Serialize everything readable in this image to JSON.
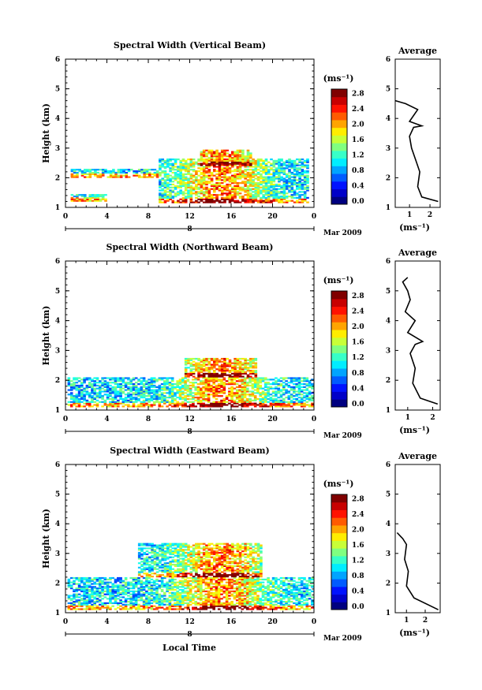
{
  "figure": {
    "xlabel": "Local Time",
    "date_label": "Mar 2009",
    "day_label": "8",
    "colorbar_unit": "(ms⁻¹)",
    "average_unit": "(ms⁻¹)",
    "ylabel": "Height (km)"
  },
  "chart_data": [
    {
      "type": "heatmap",
      "title": "Spectral Width (Vertical Beam)",
      "xlabel": "Local Time",
      "ylabel": "Height (km)",
      "x_ticks": [
        "0",
        "4",
        "8",
        "12",
        "16",
        "20",
        "0"
      ],
      "xlim": [
        0,
        24
      ],
      "y_ticks": [
        "1",
        "2",
        "3",
        "4",
        "5",
        "6"
      ],
      "ylim": [
        1,
        6
      ],
      "colorbar": {
        "label": "(ms⁻¹)",
        "ticks": [
          "0.0",
          "0.4",
          "0.8",
          "1.2",
          "1.6",
          "2.0",
          "2.4",
          "2.8"
        ],
        "range": [
          0,
          3.0
        ]
      },
      "echo_region": [
        {
          "x": [
            0.5,
            4.0
          ],
          "y": [
            1.2,
            1.45
          ]
        },
        {
          "x": [
            0.5,
            9.0
          ],
          "y": [
            2.0,
            2.25
          ]
        },
        {
          "x": [
            9.0,
            23.5
          ],
          "y": [
            1.15,
            2.6
          ]
        },
        {
          "x": [
            13.0,
            18.0
          ],
          "y": [
            2.4,
            2.9
          ]
        }
      ]
    },
    {
      "type": "line",
      "title": "Average",
      "xlabel": "(ms⁻¹)",
      "x_ticks": [
        "1",
        "2"
      ],
      "xlim": [
        0.3,
        2.5
      ],
      "y_ticks": [
        "1",
        "2",
        "3",
        "4",
        "5",
        "6"
      ],
      "ylim": [
        1,
        6
      ],
      "points": [
        [
          2.4,
          1.2
        ],
        [
          1.6,
          1.35
        ],
        [
          1.4,
          1.7
        ],
        [
          1.5,
          2.2
        ],
        [
          1.3,
          2.6
        ],
        [
          1.1,
          3.0
        ],
        [
          1.0,
          3.4
        ],
        [
          1.2,
          3.7
        ],
        [
          1.6,
          3.75
        ],
        [
          1.0,
          3.9
        ],
        [
          1.4,
          4.3
        ],
        [
          0.8,
          4.5
        ],
        [
          0.3,
          4.6
        ]
      ]
    },
    {
      "type": "heatmap",
      "title": "Spectral Width (Northward Beam)",
      "xlabel": "Local Time",
      "ylabel": "Height (km)",
      "x_ticks": [
        "0",
        "4",
        "8",
        "12",
        "16",
        "20",
        "0"
      ],
      "xlim": [
        0,
        24
      ],
      "y_ticks": [
        "1",
        "2",
        "3",
        "4",
        "5",
        "6"
      ],
      "ylim": [
        1,
        6
      ],
      "colorbar": {
        "label": "(ms⁻¹)",
        "ticks": [
          "0.0",
          "0.4",
          "0.8",
          "1.2",
          "1.6",
          "2.0",
          "2.4",
          "2.8"
        ],
        "range": [
          0,
          3.0
        ]
      },
      "echo_region": [
        {
          "x": [
            0.2,
            23.8
          ],
          "y": [
            1.1,
            2.1
          ]
        },
        {
          "x": [
            11.5,
            18.5
          ],
          "y": [
            2.1,
            2.7
          ]
        }
      ]
    },
    {
      "type": "line",
      "title": "Average",
      "xlabel": "(ms⁻¹)",
      "x_ticks": [
        "1",
        "2"
      ],
      "xlim": [
        0.5,
        2.3
      ],
      "y_ticks": [
        "1",
        "2",
        "3",
        "4",
        "5",
        "6"
      ],
      "ylim": [
        1,
        6
      ],
      "points": [
        [
          2.2,
          1.2
        ],
        [
          1.5,
          1.4
        ],
        [
          1.2,
          1.9
        ],
        [
          1.3,
          2.4
        ],
        [
          1.1,
          2.9
        ],
        [
          1.3,
          3.2
        ],
        [
          1.6,
          3.3
        ],
        [
          1.0,
          3.6
        ],
        [
          1.3,
          4.0
        ],
        [
          0.9,
          4.3
        ],
        [
          1.1,
          4.7
        ],
        [
          1.0,
          5.0
        ],
        [
          0.8,
          5.3
        ],
        [
          1.0,
          5.45
        ]
      ]
    },
    {
      "type": "heatmap",
      "title": "Spectral Width (Eastward Beam)",
      "xlabel": "Local Time",
      "ylabel": "Height (km)",
      "x_ticks": [
        "0",
        "4",
        "8",
        "12",
        "16",
        "20",
        "0"
      ],
      "xlim": [
        0,
        24
      ],
      "y_ticks": [
        "1",
        "2",
        "3",
        "4",
        "5",
        "6"
      ],
      "ylim": [
        1,
        6
      ],
      "colorbar": {
        "label": "(ms⁻¹)",
        "ticks": [
          "0.0",
          "0.4",
          "0.8",
          "1.2",
          "1.6",
          "2.0",
          "2.4",
          "2.8"
        ],
        "range": [
          0,
          3.0
        ]
      },
      "echo_region": [
        {
          "x": [
            0.2,
            23.8
          ],
          "y": [
            1.1,
            2.2
          ]
        },
        {
          "x": [
            7.0,
            19.0
          ],
          "y": [
            2.2,
            3.3
          ]
        }
      ]
    },
    {
      "type": "line",
      "title": "Average",
      "xlabel": "(ms⁻¹)",
      "x_ticks": [
        "1",
        "2"
      ],
      "xlim": [
        0.4,
        2.8
      ],
      "y_ticks": [
        "1",
        "2",
        "3",
        "4",
        "5",
        "6"
      ],
      "ylim": [
        1,
        6
      ],
      "points": [
        [
          2.7,
          1.1
        ],
        [
          1.4,
          1.5
        ],
        [
          1.0,
          1.9
        ],
        [
          1.1,
          2.4
        ],
        [
          0.9,
          2.8
        ],
        [
          1.0,
          3.3
        ],
        [
          0.8,
          3.5
        ],
        [
          0.5,
          3.7
        ]
      ]
    }
  ]
}
